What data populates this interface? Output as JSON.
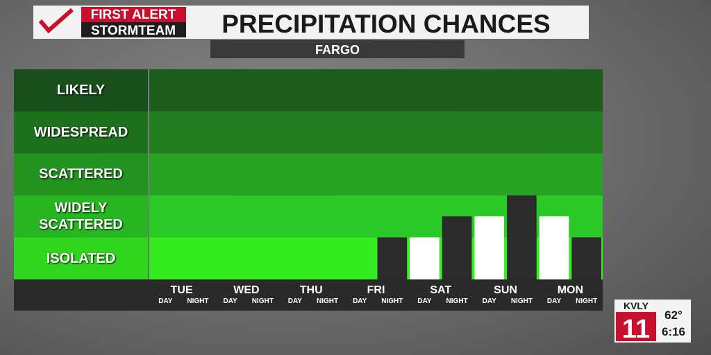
{
  "header": {
    "brand_top": "FIRST ALERT",
    "brand_bottom": "STORMTEAM"
  },
  "chart_data": {
    "type": "bar",
    "title": "PRECIPITATION CHANCES",
    "subtitle": "FARGO",
    "categories": [
      "TUE",
      "WED",
      "THU",
      "FRI",
      "SAT",
      "SUN",
      "MON"
    ],
    "series": [
      {
        "name": "DAY",
        "color": "#ffffff",
        "values": [
          0,
          0,
          0,
          0,
          1,
          1.5,
          1.5
        ]
      },
      {
        "name": "NIGHT",
        "color": "#2b2b2b",
        "values": [
          0,
          0,
          0,
          1,
          1.5,
          2,
          1
        ]
      }
    ],
    "ylim": [
      0,
      5
    ],
    "yticks": [
      {
        "value": 1,
        "label": "ISOLATED"
      },
      {
        "value": 2,
        "label": "WIDELY SCATTERED"
      },
      {
        "value": 3,
        "label": "SCATTERED"
      },
      {
        "value": 4,
        "label": "WIDESPREAD"
      },
      {
        "value": 5,
        "label": "LIKELY"
      }
    ]
  },
  "station": {
    "name": "KVLY",
    "channel": "11",
    "temperature": "62°",
    "time": "6:16"
  }
}
